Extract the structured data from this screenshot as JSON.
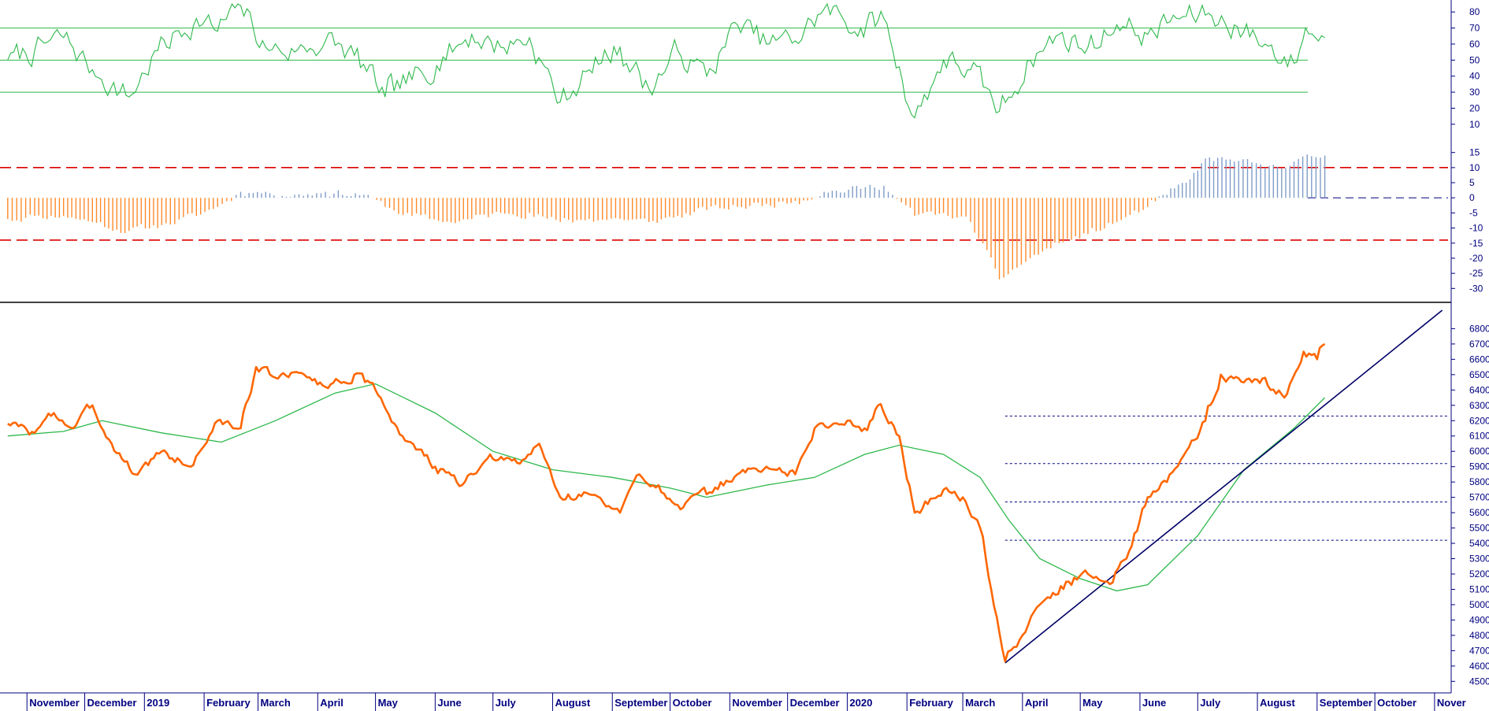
{
  "colors": {
    "price": "#ff6600",
    "moving_average": "#2db84a",
    "rsi": "#2db84a",
    "rsi_guides": "#2db84a",
    "hist_positive": "#7f9cc8",
    "hist_negative": "#ff8a2a",
    "hist_bands": "#dd0000",
    "trendline": "#000066",
    "support_levels": "#000080",
    "axis": "#000080",
    "separator": "#000000"
  },
  "chart_data": [
    {
      "type": "line",
      "panel": "rsi",
      "y_ticks": [
        10,
        20,
        30,
        40,
        50,
        60,
        70,
        80
      ],
      "ylim": [
        5,
        86
      ],
      "guide_lines": [
        30,
        50,
        70
      ],
      "series": [
        {
          "points": [
            [
              "2018-10-22",
              50
            ],
            [
              "2018-11-05",
              56
            ],
            [
              "2018-11-20",
              64
            ],
            [
              "2018-12-05",
              44
            ],
            [
              "2018-12-24",
              27
            ],
            [
              "2019-01-08",
              56
            ],
            [
              "2019-01-28",
              76
            ],
            [
              "2019-02-08",
              68
            ],
            [
              "2019-02-20",
              84
            ],
            [
              "2019-03-05",
              58
            ],
            [
              "2019-03-20",
              55
            ],
            [
              "2019-04-05",
              62
            ],
            [
              "2019-04-20",
              53
            ],
            [
              "2019-05-06",
              27
            ],
            [
              "2019-05-20",
              38
            ],
            [
              "2019-06-05",
              52
            ],
            [
              "2019-06-20",
              66
            ],
            [
              "2019-07-05",
              58
            ],
            [
              "2019-07-20",
              64
            ],
            [
              "2019-08-05",
              24
            ],
            [
              "2019-08-20",
              44
            ],
            [
              "2019-09-05",
              58
            ],
            [
              "2019-09-20",
              32
            ],
            [
              "2019-10-05",
              56
            ],
            [
              "2019-10-20",
              40
            ],
            [
              "2019-11-05",
              72
            ],
            [
              "2019-11-20",
              60
            ],
            [
              "2019-12-05",
              62
            ],
            [
              "2019-12-20",
              82
            ],
            [
              "2020-01-08",
              70
            ],
            [
              "2020-01-20",
              76
            ],
            [
              "2020-02-05",
              14
            ],
            [
              "2020-02-20",
              50
            ],
            [
              "2020-03-05",
              44
            ],
            [
              "2020-03-20",
              18
            ],
            [
              "2020-04-05",
              50
            ],
            [
              "2020-04-20",
              66
            ],
            [
              "2020-05-05",
              58
            ],
            [
              "2020-05-20",
              72
            ],
            [
              "2020-06-05",
              66
            ],
            [
              "2020-06-20",
              76
            ],
            [
              "2020-07-05",
              78
            ],
            [
              "2020-07-20",
              72
            ],
            [
              "2020-08-05",
              60
            ],
            [
              "2020-08-20",
              48
            ],
            [
              "2020-08-26",
              70
            ],
            [
              "2020-09-05",
              64
            ]
          ]
        }
      ]
    },
    {
      "type": "bar",
      "panel": "histogram",
      "y_ticks": [
        -30,
        -25,
        -20,
        -15,
        -10,
        -5,
        0,
        5,
        10,
        15
      ],
      "ylim": [
        -32,
        17
      ],
      "band_lines": [
        -14,
        10
      ],
      "series": [
        {
          "points": [
            [
              "2018-10-22",
              -7
            ],
            [
              "2018-11-05",
              -6
            ],
            [
              "2018-11-20",
              -6
            ],
            [
              "2018-12-05",
              -8
            ],
            [
              "2018-12-24",
              -11
            ],
            [
              "2019-01-10",
              -9
            ],
            [
              "2019-01-28",
              -6
            ],
            [
              "2019-02-08",
              -3
            ],
            [
              "2019-02-20",
              2
            ],
            [
              "2019-03-05",
              2
            ],
            [
              "2019-03-20",
              1
            ],
            [
              "2019-04-05",
              2
            ],
            [
              "2019-04-25",
              1
            ],
            [
              "2019-05-06",
              -3
            ],
            [
              "2019-05-20",
              -6
            ],
            [
              "2019-06-05",
              -8
            ],
            [
              "2019-06-20",
              -7
            ],
            [
              "2019-07-05",
              -5
            ],
            [
              "2019-07-20",
              -5
            ],
            [
              "2019-08-05",
              -8
            ],
            [
              "2019-08-20",
              -7
            ],
            [
              "2019-09-05",
              -7
            ],
            [
              "2019-09-20",
              -8
            ],
            [
              "2019-10-05",
              -6
            ],
            [
              "2019-10-20",
              -4
            ],
            [
              "2019-11-05",
              -3
            ],
            [
              "2019-11-20",
              -2
            ],
            [
              "2019-12-05",
              -1
            ],
            [
              "2019-12-20",
              2
            ],
            [
              "2020-01-08",
              3
            ],
            [
              "2020-01-20",
              4
            ],
            [
              "2020-02-05",
              -6
            ],
            [
              "2020-02-20",
              -5
            ],
            [
              "2020-03-05",
              -8
            ],
            [
              "2020-03-20",
              -27
            ],
            [
              "2020-04-05",
              -20
            ],
            [
              "2020-04-20",
              -15
            ],
            [
              "2020-05-05",
              -12
            ],
            [
              "2020-05-20",
              -8
            ],
            [
              "2020-06-05",
              -3
            ],
            [
              "2020-06-15",
              1
            ],
            [
              "2020-06-25",
              5
            ],
            [
              "2020-07-01",
              9
            ],
            [
              "2020-07-05",
              13
            ],
            [
              "2020-07-20",
              12
            ],
            [
              "2020-08-05",
              10
            ],
            [
              "2020-08-20",
              12
            ],
            [
              "2020-09-05",
              14
            ]
          ]
        }
      ]
    },
    {
      "type": "line",
      "panel": "price",
      "y_ticks": [
        4500,
        4600,
        4700,
        4800,
        4900,
        5000,
        5100,
        5200,
        5300,
        5400,
        5500,
        5600,
        5700,
        5800,
        5900,
        6000,
        6100,
        6200,
        6300,
        6400,
        6500,
        6600,
        6700,
        6800
      ],
      "ylim": [
        4435,
        6915
      ],
      "series": [
        {
          "kind": "price",
          "points": [
            [
              "2018-10-22",
              6180
            ],
            [
              "2018-11-05",
              6120
            ],
            [
              "2018-11-15",
              6250
            ],
            [
              "2018-11-25",
              6150
            ],
            [
              "2018-12-05",
              6300
            ],
            [
              "2018-12-15",
              6050
            ],
            [
              "2018-12-27",
              5850
            ],
            [
              "2019-01-10",
              6000
            ],
            [
              "2019-01-25",
              5900
            ],
            [
              "2019-02-08",
              6200
            ],
            [
              "2019-02-20",
              6150
            ],
            [
              "2019-02-28",
              6550
            ],
            [
              "2019-03-10",
              6480
            ],
            [
              "2019-03-25",
              6500
            ],
            [
              "2019-04-05",
              6420
            ],
            [
              "2019-04-20",
              6500
            ],
            [
              "2019-05-01",
              6400
            ],
            [
              "2019-05-15",
              6100
            ],
            [
              "2019-06-01",
              5900
            ],
            [
              "2019-06-15",
              5780
            ],
            [
              "2019-07-01",
              5950
            ],
            [
              "2019-07-15",
              5920
            ],
            [
              "2019-07-25",
              6050
            ],
            [
              "2019-08-05",
              5700
            ],
            [
              "2019-08-20",
              5720
            ],
            [
              "2019-09-05",
              5600
            ],
            [
              "2019-09-15",
              5850
            ],
            [
              "2019-09-25",
              5780
            ],
            [
              "2019-10-05",
              5650
            ],
            [
              "2019-10-20",
              5720
            ],
            [
              "2019-11-05",
              5850
            ],
            [
              "2019-11-20",
              5900
            ],
            [
              "2019-12-05",
              5850
            ],
            [
              "2019-12-15",
              6150
            ],
            [
              "2020-01-01",
              6200
            ],
            [
              "2020-01-10",
              6150
            ],
            [
              "2020-01-17",
              6300
            ],
            [
              "2020-01-28",
              6100
            ],
            [
              "2020-02-05",
              5600
            ],
            [
              "2020-02-20",
              5750
            ],
            [
              "2020-03-01",
              5700
            ],
            [
              "2020-03-10",
              5500
            ],
            [
              "2020-03-23",
              4630
            ],
            [
              "2020-04-01",
              4800
            ],
            [
              "2020-04-10",
              5000
            ],
            [
              "2020-04-25",
              5150
            ],
            [
              "2020-05-05",
              5200
            ],
            [
              "2020-05-15",
              5150
            ],
            [
              "2020-05-25",
              5300
            ],
            [
              "2020-06-05",
              5700
            ],
            [
              "2020-06-15",
              5800
            ],
            [
              "2020-06-25",
              6000
            ],
            [
              "2020-07-05",
              6200
            ],
            [
              "2020-07-13",
              6500
            ],
            [
              "2020-07-25",
              6450
            ],
            [
              "2020-08-05",
              6480
            ],
            [
              "2020-08-15",
              6350
            ],
            [
              "2020-08-25",
              6650
            ],
            [
              "2020-09-01",
              6600
            ],
            [
              "2020-09-05",
              6700
            ]
          ]
        },
        {
          "kind": "moving-average",
          "points": [
            [
              "2018-10-22",
              6100
            ],
            [
              "2018-11-20",
              6130
            ],
            [
              "2018-12-10",
              6200
            ],
            [
              "2019-01-10",
              6120
            ],
            [
              "2019-02-10",
              6060
            ],
            [
              "2019-03-10",
              6200
            ],
            [
              "2019-04-10",
              6380
            ],
            [
              "2019-05-01",
              6440
            ],
            [
              "2019-06-01",
              6250
            ],
            [
              "2019-07-01",
              6000
            ],
            [
              "2019-08-01",
              5880
            ],
            [
              "2019-09-01",
              5830
            ],
            [
              "2019-10-01",
              5760
            ],
            [
              "2019-10-20",
              5700
            ],
            [
              "2019-11-20",
              5780
            ],
            [
              "2019-12-15",
              5830
            ],
            [
              "2020-01-10",
              5980
            ],
            [
              "2020-01-28",
              6040
            ],
            [
              "2020-02-20",
              5980
            ],
            [
              "2020-03-10",
              5830
            ],
            [
              "2020-03-25",
              5550
            ],
            [
              "2020-04-10",
              5300
            ],
            [
              "2020-05-01",
              5170
            ],
            [
              "2020-05-20",
              5090
            ],
            [
              "2020-06-05",
              5130
            ],
            [
              "2020-07-01",
              5450
            ],
            [
              "2020-07-25",
              5880
            ],
            [
              "2020-08-20",
              6150
            ],
            [
              "2020-09-05",
              6350
            ]
          ]
        }
      ],
      "trendline": [
        [
          "2020-03-23",
          4620
        ],
        [
          "2020-11-05",
          6920
        ]
      ],
      "support_levels": [
        5420,
        5670,
        5920,
        6230
      ],
      "support_start": "2020-03-23"
    }
  ],
  "x_axis": {
    "range": [
      "2018-10-18",
      "2020-11-08"
    ],
    "months": [
      {
        "label": "November",
        "date": "2018-11-01"
      },
      {
        "label": "December",
        "date": "2018-12-01"
      },
      {
        "label": "2019",
        "date": "2019-01-01"
      },
      {
        "label": "February",
        "date": "2019-02-01"
      },
      {
        "label": "March",
        "date": "2019-03-01"
      },
      {
        "label": "April",
        "date": "2019-04-01"
      },
      {
        "label": "May",
        "date": "2019-05-01"
      },
      {
        "label": "June",
        "date": "2019-06-01"
      },
      {
        "label": "July",
        "date": "2019-07-01"
      },
      {
        "label": "August",
        "date": "2019-08-01"
      },
      {
        "label": "September",
        "date": "2019-09-01"
      },
      {
        "label": "October",
        "date": "2019-10-01"
      },
      {
        "label": "November",
        "date": "2019-11-01"
      },
      {
        "label": "December",
        "date": "2019-12-01"
      },
      {
        "label": "2020",
        "date": "2020-01-01"
      },
      {
        "label": "February",
        "date": "2020-02-01"
      },
      {
        "label": "March",
        "date": "2020-03-01"
      },
      {
        "label": "April",
        "date": "2020-04-01"
      },
      {
        "label": "May",
        "date": "2020-05-01"
      },
      {
        "label": "June",
        "date": "2020-06-01"
      },
      {
        "label": "July",
        "date": "2020-07-01"
      },
      {
        "label": "August",
        "date": "2020-08-01"
      },
      {
        "label": "September",
        "date": "2020-09-01"
      },
      {
        "label": "October",
        "date": "2020-10-01"
      },
      {
        "label": "Nover",
        "date": "2020-11-01"
      }
    ]
  }
}
